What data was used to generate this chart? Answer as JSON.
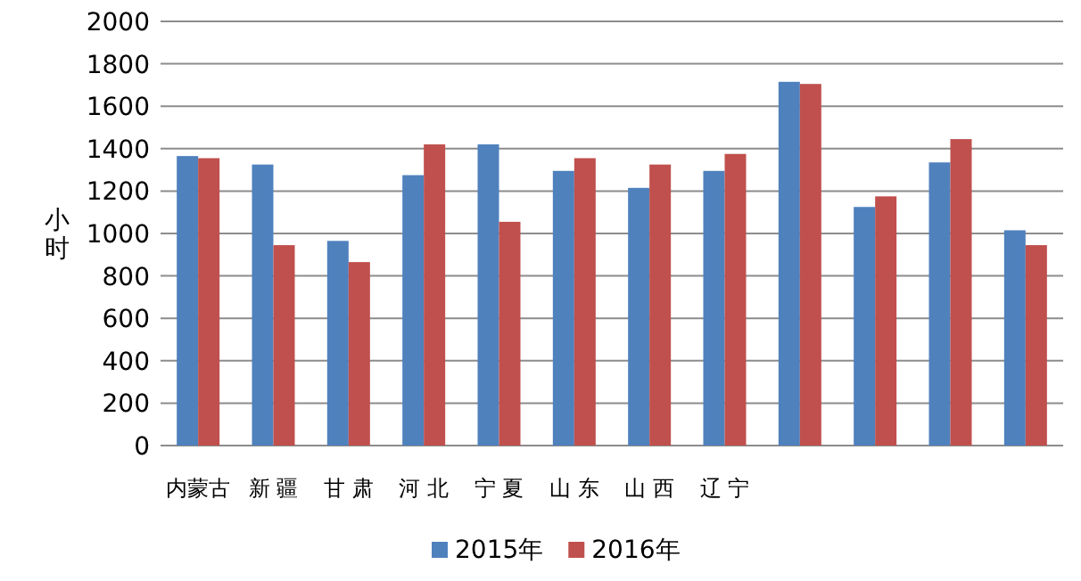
{
  "chart_data": {
    "type": "bar",
    "ylabel": "小时",
    "categories": [
      "内蒙古",
      "新 疆",
      "甘 肃",
      "河 北",
      "宁 夏",
      "山 东",
      "山 西",
      "辽 宁",
      null,
      null,
      null,
      null
    ],
    "series": [
      {
        "name": "2015年",
        "color": "#4f81bd",
        "values": [
          1365,
          1325,
          965,
          1275,
          1420,
          1295,
          1215,
          1295,
          1715,
          1125,
          1335,
          1015
        ]
      },
      {
        "name": "2016年",
        "color": "#c0504d",
        "values": [
          1355,
          945,
          865,
          1420,
          1055,
          1355,
          1325,
          1375,
          1705,
          1175,
          1445,
          945
        ]
      }
    ],
    "ylim": [
      0,
      2000
    ],
    "yticks": [
      0,
      200,
      400,
      600,
      800,
      1000,
      1200,
      1400,
      1600,
      1800,
      2000
    ],
    "grid": "y",
    "legend": "bottom"
  }
}
